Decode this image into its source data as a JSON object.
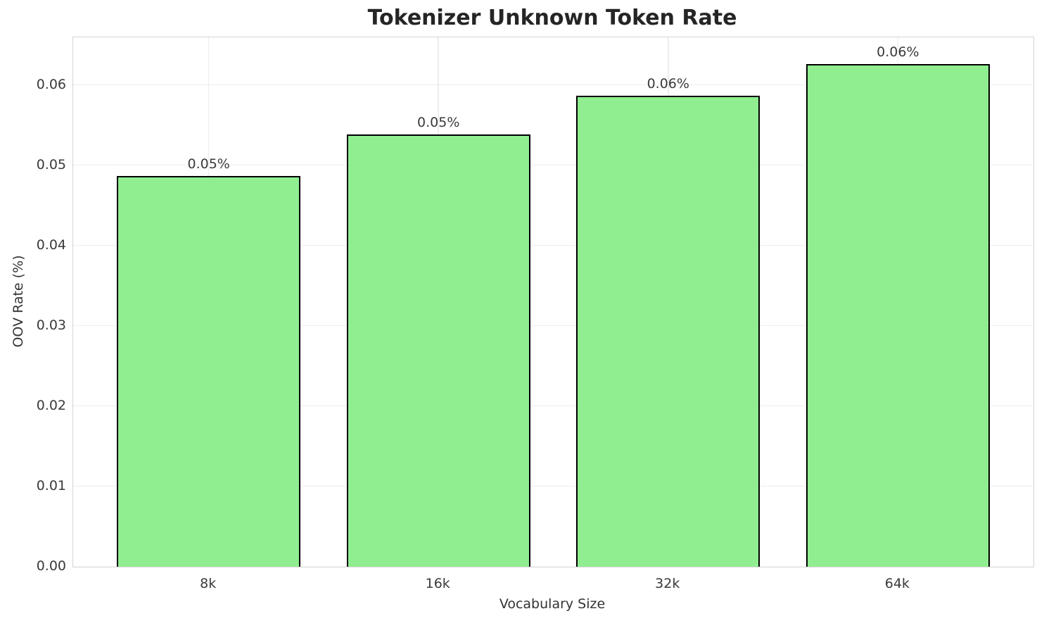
{
  "chart_data": {
    "type": "bar",
    "title": "Tokenizer Unknown Token Rate",
    "xlabel": "Vocabulary Size",
    "ylabel": "OOV Rate (%)",
    "categories": [
      "8k",
      "16k",
      "32k",
      "64k"
    ],
    "values": [
      0.0487,
      0.0539,
      0.0587,
      0.0627
    ],
    "bar_labels": [
      "0.05%",
      "0.05%",
      "0.06%",
      "0.06%"
    ],
    "yticks": [
      "0.00",
      "0.01",
      "0.02",
      "0.03",
      "0.04",
      "0.05",
      "0.06"
    ],
    "ylim": [
      0,
      0.066
    ],
    "grid": true,
    "legend": "none",
    "bar_color": "#90EE90",
    "bar_edge_color": "#000000",
    "grid_color": "#ededed",
    "spine_color": "#d4d4d4"
  }
}
